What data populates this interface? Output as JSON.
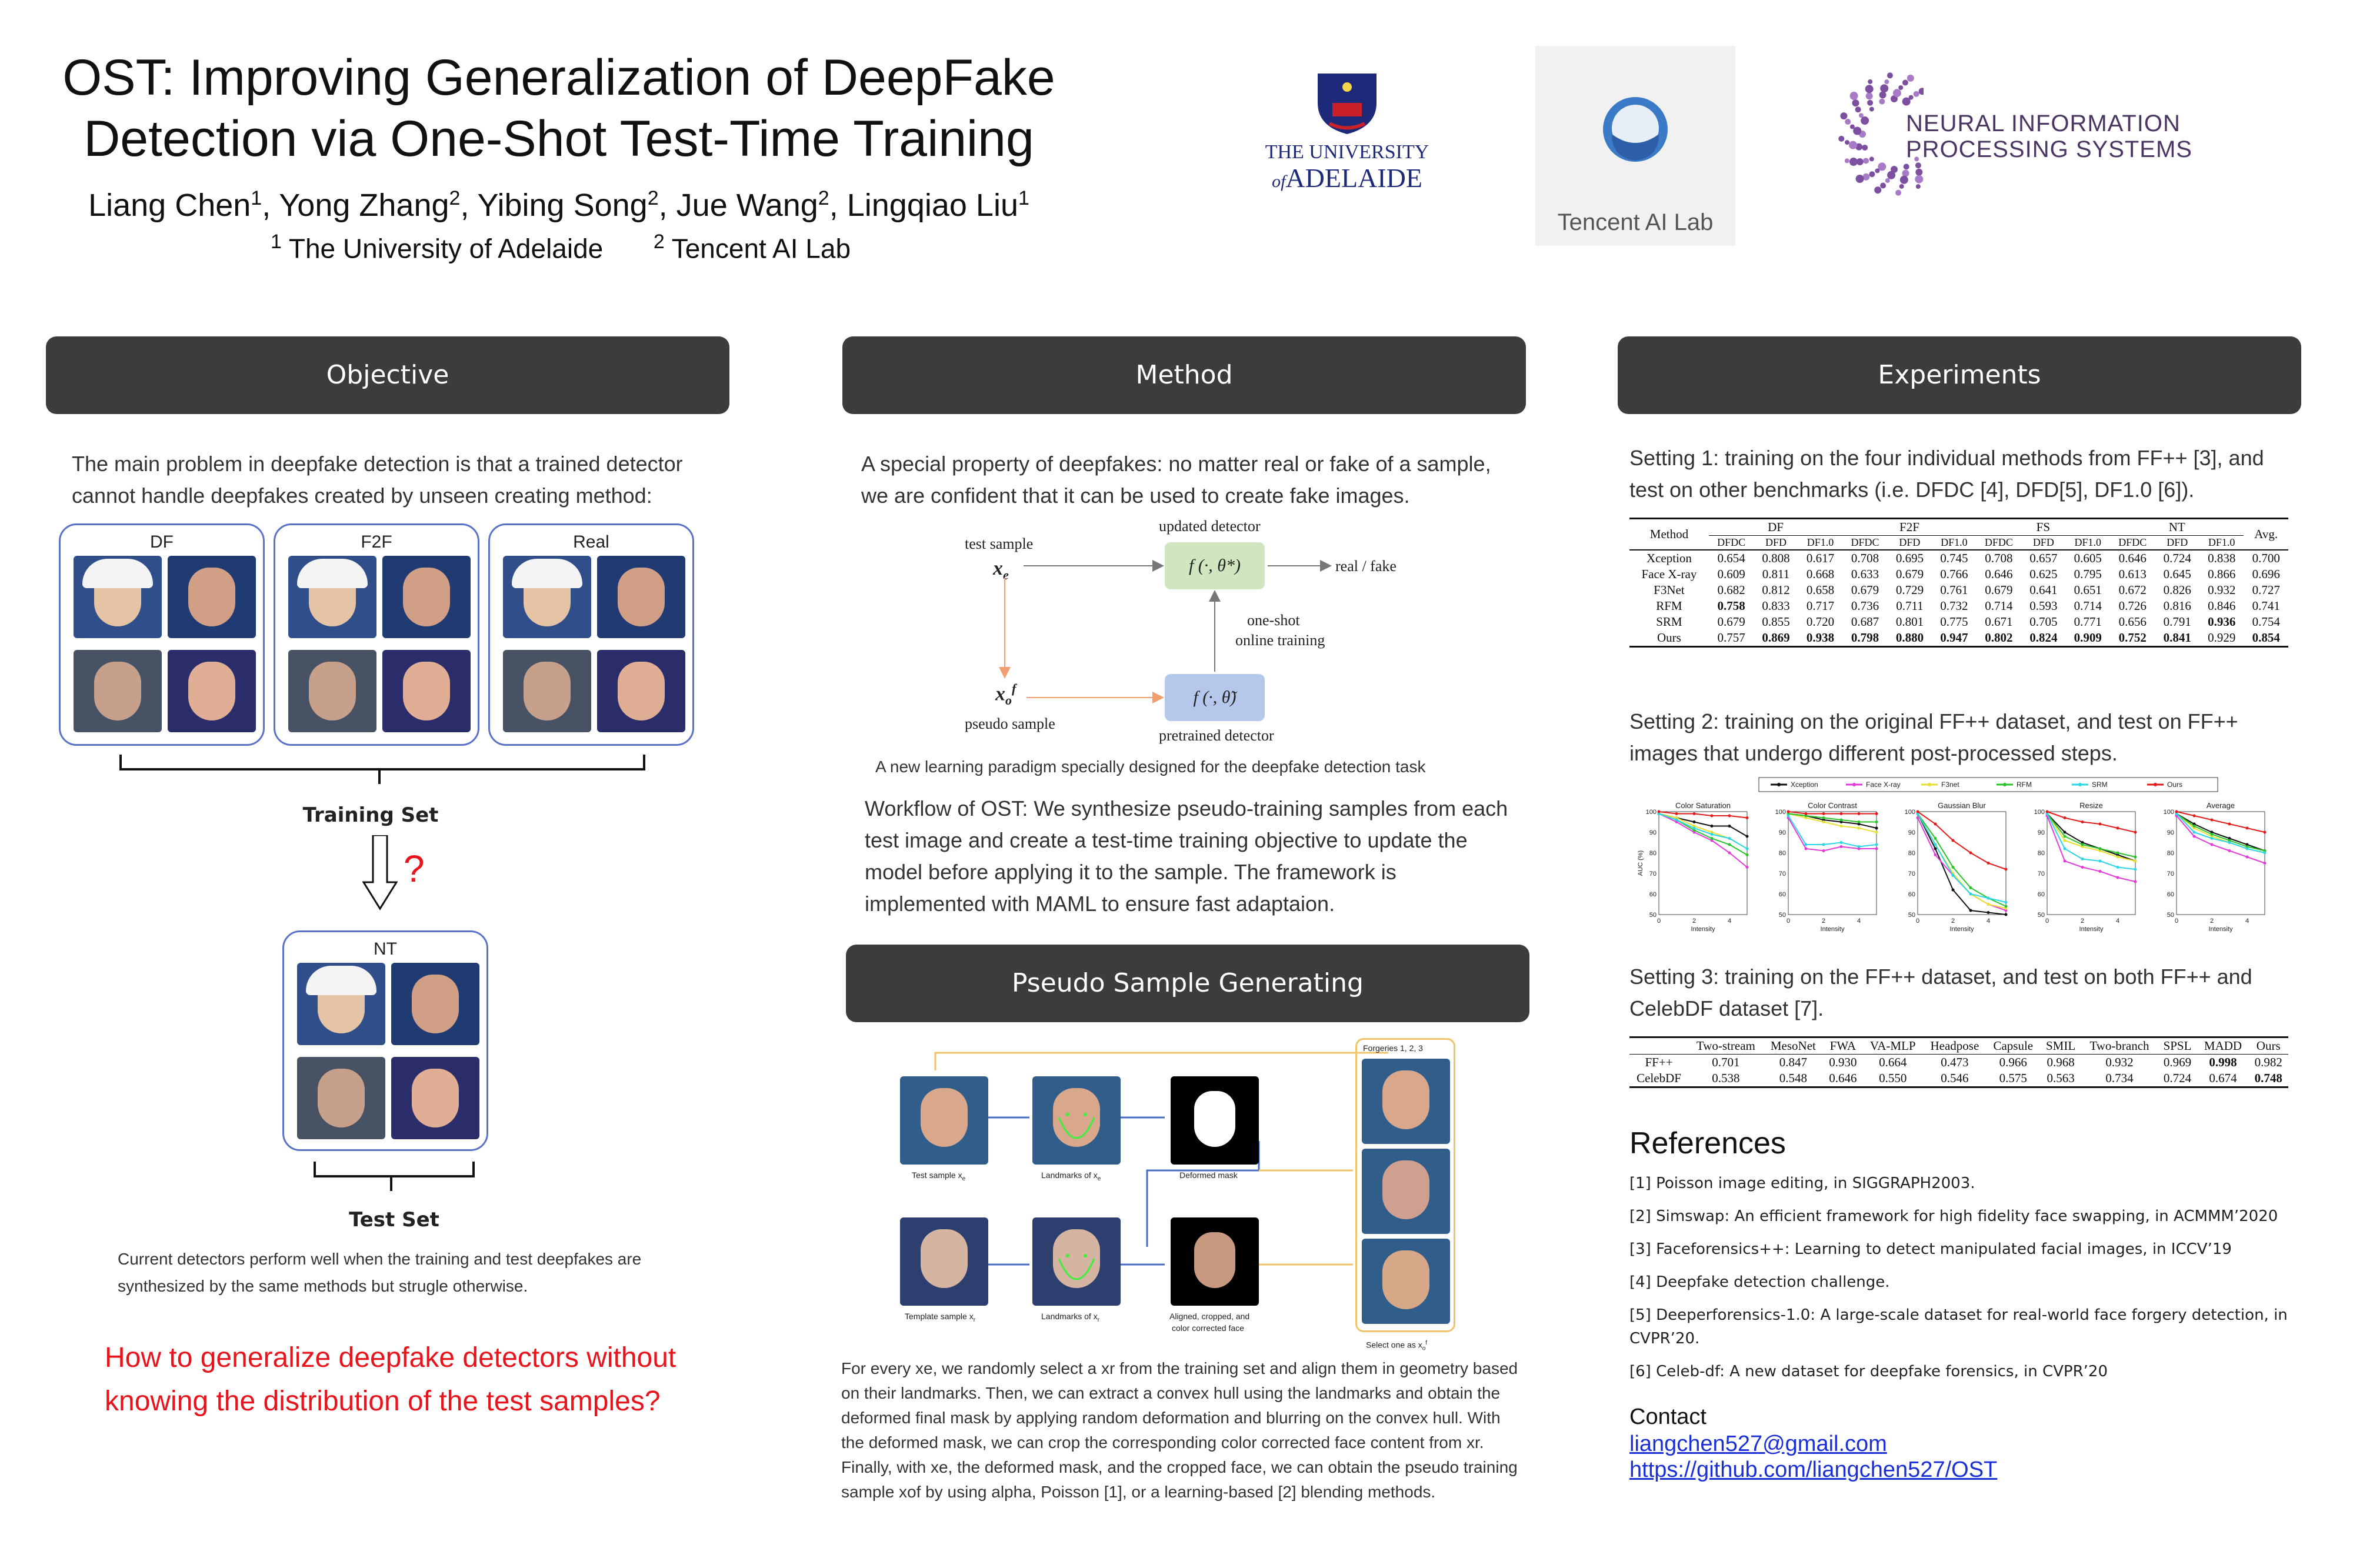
{
  "poster": {
    "title_line1": "OST: Improving Generalization of DeepFake",
    "title_line2": "Detection via One-Shot Test-Time Training",
    "authors": [
      {
        "name": "Liang Chen",
        "sup": "1"
      },
      {
        "name": "Yong Zhang",
        "sup": "2"
      },
      {
        "name": "Yibing Song",
        "sup": "2"
      },
      {
        "name": "Jue Wang",
        "sup": "2"
      },
      {
        "name": "Lingqiao Liu",
        "sup": "1"
      }
    ],
    "affil1_sup": "1",
    "affil1": "The University of Adelaide",
    "affil2_sup": "2",
    "affil2": "Tencent AI Lab",
    "logos": {
      "adelaide_line1": "THE UNIVERSITY",
      "adelaide_of": "of",
      "adelaide_line2": "ADELAIDE",
      "tencent": "Tencent AI Lab",
      "neurips_line1": "NEURAL INFORMATION",
      "neurips_line2": "PROCESSING SYSTEMS"
    }
  },
  "objective": {
    "header": "Objective",
    "intro": "The main problem in deepfake detection is that a trained detector cannot handle deepfakes created by unseen creating method:",
    "groups": [
      "DF",
      "F2F",
      "Real"
    ],
    "training_set": "Training Set",
    "question_mark": "?",
    "nt_label": "NT",
    "test_set": "Test Set",
    "note": "Current detectors perform well when the training and test deepfakes are synthesized by the same methods but strugle otherwise.",
    "question": "How to generalize deepfake detectors without knowing the distribution of the test samples?"
  },
  "method": {
    "header": "Method",
    "intro": "A special property of deepfakes: no matter real or fake of a sample, we are confident that it can be used to create fake images.",
    "diagram": {
      "test_sample": "test sample",
      "xe": "x",
      "xe_sub": "e",
      "updated_detector": "updated detector",
      "f_updated": "f (·, θ*)",
      "real_fake": "real / fake",
      "one_shot": "one-shot",
      "online_training": "online training",
      "xo": "x",
      "xo_sub": "o",
      "xo_sup": "f",
      "pseudo_sample": "pseudo sample",
      "f_pretrained": "f (·, θ̃)",
      "pretrained_detector": "pretrained detector"
    },
    "caption": "A new learning paradigm specially designed for the deepfake detection task",
    "workflow": "Workflow of OST: We synthesize pseudo-training samples from each test image and create a test-time training objective to update the model before applying it to the sample. The framework is implemented with MAML to ensure fast adaptaion."
  },
  "pseudo": {
    "header": "Pseudo Sample Generating",
    "forgeries_label": "Forgeries 1, 2, 3",
    "labels": {
      "test_sample": "Test sample x",
      "test_sub": "e",
      "landmarks_e": "Landmarks of x",
      "landmarks_e_sub": "e",
      "deformed_mask": "Deformed mask",
      "template": "Template sample x",
      "template_sub": "r",
      "landmarks_r": "Landmarks of x",
      "landmarks_r_sub": "r",
      "aligned_line1": "Aligned, cropped, and",
      "aligned_line2": "color corrected face",
      "select_one": "Select one as x",
      "select_sub": "o",
      "select_sup": "f"
    },
    "description": "For every xe, we randomly select a xr from the training set and align them in geometry based on their landmarks. Then, we can extract a convex hull using the landmarks and obtain the deformed final mask by applying random deformation and blurring on the convex hull. With the deformed mask, we can crop the corresponding color corrected face content from xr. Finally, with xe, the deformed mask, and the cropped face, we can obtain the pseudo training sample xof by using alpha, Poisson [1], or a learning-based [2] blending methods."
  },
  "experiments": {
    "header": "Experiments",
    "setting1": "Setting 1:  training on the four individual methods from FF++ [3], and test on other benchmarks (i.e. DFDC [4], DFD[5], DF1.0 [6]).",
    "table1": {
      "method_col": "Method",
      "groups": [
        "DF",
        "F2F",
        "FS",
        "NT"
      ],
      "sub": [
        "DFDC",
        "DFD",
        "DF1.0"
      ],
      "avg": "Avg.",
      "rows": [
        {
          "name": "Xception",
          "vals": [
            "0.654",
            "0.808",
            "0.617",
            "0.708",
            "0.695",
            "0.745",
            "0.708",
            "0.657",
            "0.605",
            "0.646",
            "0.724",
            "0.838",
            "0.700"
          ],
          "bold": []
        },
        {
          "name": "Face X-ray",
          "vals": [
            "0.609",
            "0.811",
            "0.668",
            "0.633",
            "0.679",
            "0.766",
            "0.646",
            "0.625",
            "0.795",
            "0.613",
            "0.645",
            "0.866",
            "0.696"
          ],
          "bold": []
        },
        {
          "name": "F3Net",
          "vals": [
            "0.682",
            "0.812",
            "0.658",
            "0.679",
            "0.729",
            "0.761",
            "0.679",
            "0.641",
            "0.651",
            "0.672",
            "0.826",
            "0.932",
            "0.727"
          ],
          "bold": []
        },
        {
          "name": "RFM",
          "vals": [
            "0.758",
            "0.833",
            "0.717",
            "0.736",
            "0.711",
            "0.732",
            "0.714",
            "0.593",
            "0.714",
            "0.726",
            "0.816",
            "0.846",
            "0.741"
          ],
          "bold": [
            0
          ]
        },
        {
          "name": "SRM",
          "vals": [
            "0.679",
            "0.855",
            "0.720",
            "0.687",
            "0.801",
            "0.775",
            "0.671",
            "0.705",
            "0.771",
            "0.656",
            "0.791",
            "0.936",
            "0.754"
          ],
          "bold": [
            11
          ]
        },
        {
          "name": "Ours",
          "vals": [
            "0.757",
            "0.869",
            "0.938",
            "0.798",
            "0.880",
            "0.947",
            "0.802",
            "0.824",
            "0.909",
            "0.752",
            "0.841",
            "0.929",
            "0.854"
          ],
          "bold": [
            1,
            2,
            3,
            4,
            5,
            6,
            7,
            8,
            9,
            10,
            12
          ]
        }
      ]
    },
    "setting2": "Setting 2: training on the original FF++ dataset, and test on FF++ images that undergo different post-processed steps.",
    "chart_data": {
      "type": "line",
      "legend": [
        "Xception",
        "Face X-ray",
        "F3net",
        "RFM",
        "SRM",
        "Ours"
      ],
      "colors": [
        "#111111",
        "#e43ad9",
        "#e8e030",
        "#29c429",
        "#2bd7e6",
        "#e51b1b"
      ],
      "ylabel": "AUC (%)",
      "xlabel": "Intensity",
      "x": [
        0,
        1,
        2,
        3,
        4,
        5
      ],
      "xticks": [
        "0",
        "2",
        "4"
      ],
      "yticks": [
        "50",
        "60",
        "70",
        "80",
        "90",
        "100"
      ],
      "ylim": [
        50,
        100
      ],
      "panels": [
        {
          "title": "Color Saturation",
          "series": [
            [
              99,
              97,
              95,
              93,
              93,
              88
            ],
            [
              99,
              95,
              90,
              86,
              80,
              73
            ],
            [
              99,
              97,
              93,
              90,
              87,
              82
            ],
            [
              99,
              96,
              91,
              87,
              84,
              79
            ],
            [
              99,
              96,
              92,
              89,
              87,
              82
            ],
            [
              100,
              99,
              99,
              98,
              98,
              97
            ]
          ]
        },
        {
          "title": "Color Contrast",
          "series": [
            [
              99,
              98,
              96,
              95,
              94,
              92
            ],
            [
              97,
              82,
              81,
              83,
              82,
              82
            ],
            [
              99,
              97,
              95,
              93,
              92,
              90
            ],
            [
              99,
              98,
              97,
              96,
              95,
              95
            ],
            [
              98,
              84,
              84,
              85,
              83,
              84
            ],
            [
              100,
              99,
              99,
              99,
              99,
              99
            ]
          ]
        },
        {
          "title": "Gaussian Blur",
          "series": [
            [
              99,
              82,
              62,
              52,
              51,
              50
            ],
            [
              97,
              79,
              69,
              60,
              55,
              52
            ],
            [
              99,
              84,
              70,
              60,
              55,
              53
            ],
            [
              99,
              87,
              73,
              63,
              58,
              54
            ],
            [
              99,
              84,
              69,
              60,
              58,
              56
            ],
            [
              100,
              94,
              86,
              80,
              75,
              72
            ]
          ]
        },
        {
          "title": "Resize",
          "series": [
            [
              99,
              90,
              85,
              82,
              79,
              76
            ],
            [
              98,
              76,
              73,
              71,
              68,
              66
            ],
            [
              99,
              86,
              83,
              81,
              78,
              76
            ],
            [
              99,
              88,
              84,
              82,
              80,
              78
            ],
            [
              99,
              82,
              77,
              76,
              73,
              72
            ],
            [
              100,
              97,
              95,
              94,
              92,
              90
            ]
          ]
        },
        {
          "title": "Average",
          "series": [
            [
              99,
              94,
              90,
              87,
              84,
              81
            ],
            [
              98,
              88,
              84,
              81,
              78,
              75
            ],
            [
              99,
              92,
              88,
              85,
              82,
              80
            ],
            [
              99,
              93,
              89,
              86,
              83,
              81
            ],
            [
              99,
              90,
              87,
              85,
              82,
              80
            ],
            [
              100,
              98,
              96,
              94,
              92,
              90
            ]
          ]
        }
      ]
    },
    "setting3": "Setting 3: training on the FF++ dataset, and test on both FF++ and CelebDF dataset [7].",
    "table3": {
      "cols": [
        "Two-stream",
        "MesoNet",
        "FWA",
        "VA-MLP",
        "Headpose",
        "Capsule",
        "SMIL",
        "Two-branch",
        "SPSL",
        "MADD",
        "Ours"
      ],
      "rows": [
        {
          "name": "FF++",
          "vals": [
            "0.701",
            "0.847",
            "0.930",
            "0.664",
            "0.473",
            "0.966",
            "0.968",
            "0.932",
            "0.969",
            "0.998",
            "0.982"
          ],
          "bold": [
            9
          ]
        },
        {
          "name": "CelebDF",
          "vals": [
            "0.538",
            "0.548",
            "0.646",
            "0.550",
            "0.546",
            "0.575",
            "0.563",
            "0.734",
            "0.724",
            "0.674",
            "0.748"
          ],
          "bold": [
            10
          ]
        }
      ]
    }
  },
  "references": {
    "header": "References",
    "items": [
      "[1] Poisson image editing, in SIGGRAPH2003.",
      "[2] Simswap: An efficient framework for high fidelity face swapping, in ACMMM’2020",
      "[3] Faceforensics++: Learning to detect manipulated facial images, in ICCV’19",
      "[4] Deepfake detection challenge.",
      "[5] Deeperforensics-1.0: A large-scale dataset for real-world face forgery detection, in CVPR’20.",
      "[6] Celeb-df: A new dataset for deepfake forensics, in CVPR’20"
    ],
    "contact_label": "Contact",
    "email": "liangchen527@gmail.com",
    "github": "https://github.com/liangchen527/OST"
  }
}
